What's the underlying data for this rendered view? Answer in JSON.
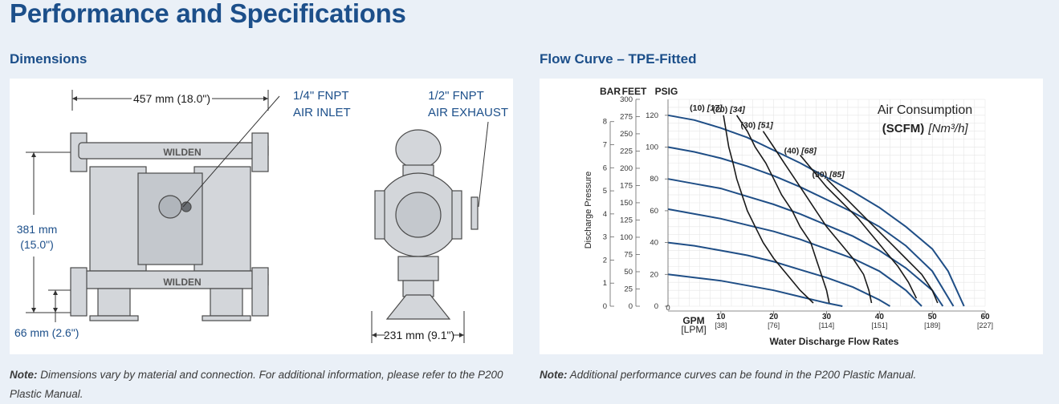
{
  "page": {
    "title": "Performance and Specifications"
  },
  "dimensions": {
    "heading": "Dimensions",
    "width_label": "457 mm (18.0\")",
    "air_inlet": [
      "1/4\" FNPT",
      "AIR INLET"
    ],
    "air_exhaust": [
      "1/2\" FNPT",
      "AIR EXHAUST"
    ],
    "height_label": [
      "381 mm",
      "(15.0\")"
    ],
    "base_label": "66 mm (2.6\")",
    "side_width_label": "231 mm (9.1\")",
    "brand": "WILDEN",
    "note_prefix": "Note:",
    "note_text": " Dimensions vary by material and connection. For additional information, please refer to the P200 Plastic Manual."
  },
  "flow": {
    "heading": "Flow Curve – TPE-Fitted",
    "note_prefix": "Note:",
    "note_text": " Additional performance curves can be found in the P200 Plastic Manual."
  },
  "colors": {
    "heading": "#1c4f8a",
    "curve": "#1f4e86",
    "air": "#1a1a1a"
  },
  "chart_data": {
    "type": "line",
    "xlabel": "Water Discharge Flow Rates",
    "ylabel": "Discharge Pressure",
    "x_unit_labels": [
      "GPM",
      "[LPM]"
    ],
    "xlim": [
      0,
      60
    ],
    "x_ticks": [
      {
        "v": 10,
        "lpm": "[38]"
      },
      {
        "v": 20,
        "lpm": "[76]"
      },
      {
        "v": 30,
        "lpm": "[114]"
      },
      {
        "v": 40,
        "lpm": "[151]"
      },
      {
        "v": 50,
        "lpm": "[189]"
      },
      {
        "v": 60,
        "lpm": "[227]"
      }
    ],
    "x_zero": "0",
    "y_axes": [
      {
        "name": "BAR",
        "ticks": [
          "0",
          "1",
          "2",
          "3",
          "4",
          "5",
          "6",
          "7",
          "8"
        ],
        "values": [
          0,
          1,
          2,
          3,
          4,
          5,
          6,
          7,
          8
        ]
      },
      {
        "name": "FEET",
        "ticks": [
          "0",
          "25",
          "50",
          "75",
          "100",
          "125",
          "150",
          "175",
          "200",
          "225",
          "250",
          "275",
          "300"
        ],
        "values": [
          0,
          25,
          50,
          75,
          100,
          125,
          150,
          175,
          200,
          225,
          250,
          275,
          300
        ]
      },
      {
        "name": "PSIG",
        "ticks": [
          "0",
          "20",
          "40",
          "60",
          "80",
          "100",
          "120"
        ],
        "values": [
          0,
          20,
          40,
          60,
          80,
          100,
          120
        ]
      }
    ],
    "ylim_psig": [
      0,
      130
    ],
    "grid": true,
    "legend_title": "Air Consumption",
    "legend_units": "(SCFM)",
    "legend_units_metric": "[Nm³/h]",
    "pressure_series": [
      {
        "name": "120",
        "points": [
          [
            0,
            120
          ],
          [
            5,
            117
          ],
          [
            10,
            112
          ],
          [
            15,
            106
          ],
          [
            20,
            98
          ],
          [
            25,
            90
          ],
          [
            30,
            81
          ],
          [
            35,
            72
          ],
          [
            40,
            62
          ],
          [
            45,
            50
          ],
          [
            50,
            36
          ],
          [
            53,
            22
          ],
          [
            56,
            0
          ]
        ]
      },
      {
        "name": "100",
        "points": [
          [
            0,
            100
          ],
          [
            5,
            97
          ],
          [
            10,
            93
          ],
          [
            15,
            88
          ],
          [
            20,
            82
          ],
          [
            25,
            75
          ],
          [
            30,
            67
          ],
          [
            35,
            59
          ],
          [
            40,
            50
          ],
          [
            45,
            38
          ],
          [
            50,
            22
          ],
          [
            54,
            0
          ]
        ]
      },
      {
        "name": "80",
        "points": [
          [
            0,
            80
          ],
          [
            5,
            77
          ],
          [
            10,
            74
          ],
          [
            15,
            69
          ],
          [
            20,
            64
          ],
          [
            25,
            58
          ],
          [
            30,
            51
          ],
          [
            35,
            44
          ],
          [
            40,
            35
          ],
          [
            45,
            24
          ],
          [
            50,
            10
          ],
          [
            52,
            0
          ]
        ]
      },
      {
        "name": "60",
        "points": [
          [
            0,
            61
          ],
          [
            5,
            58
          ],
          [
            10,
            55
          ],
          [
            15,
            51
          ],
          [
            20,
            47
          ],
          [
            25,
            42
          ],
          [
            30,
            36
          ],
          [
            35,
            30
          ],
          [
            40,
            22
          ],
          [
            45,
            10
          ],
          [
            48,
            0
          ]
        ]
      },
      {
        "name": "40",
        "points": [
          [
            0,
            40
          ],
          [
            5,
            38
          ],
          [
            10,
            35
          ],
          [
            15,
            32
          ],
          [
            20,
            28
          ],
          [
            25,
            23
          ],
          [
            30,
            18
          ],
          [
            35,
            12
          ],
          [
            40,
            4
          ],
          [
            42,
            0
          ]
        ]
      },
      {
        "name": "20",
        "points": [
          [
            0,
            20
          ],
          [
            5,
            18
          ],
          [
            10,
            16
          ],
          [
            15,
            13
          ],
          [
            20,
            10
          ],
          [
            25,
            6
          ],
          [
            30,
            2
          ],
          [
            33,
            0
          ]
        ]
      }
    ],
    "air_series": [
      {
        "label": "(10)",
        "metric": "[17]",
        "points": [
          [
            10.5,
            120
          ],
          [
            11,
            110
          ],
          [
            11.5,
            100
          ],
          [
            12.3,
            90
          ],
          [
            13,
            80
          ],
          [
            14,
            70
          ],
          [
            15,
            60
          ],
          [
            16.5,
            50
          ],
          [
            18,
            40
          ],
          [
            20,
            30
          ],
          [
            22.5,
            20
          ],
          [
            25,
            10
          ],
          [
            27.5,
            2
          ]
        ]
      },
      {
        "label": "(20)",
        "metric": "[34]",
        "points": [
          [
            13,
            120
          ],
          [
            15,
            110
          ],
          [
            16.5,
            100
          ],
          [
            18.5,
            90
          ],
          [
            20,
            80
          ],
          [
            21.5,
            70
          ],
          [
            23.5,
            60
          ],
          [
            25,
            50
          ],
          [
            27,
            40
          ],
          [
            28,
            30
          ],
          [
            29,
            20
          ],
          [
            30,
            10
          ],
          [
            30.5,
            2
          ]
        ]
      },
      {
        "label": "(30)",
        "metric": "[51]",
        "points": [
          [
            18,
            110
          ],
          [
            20,
            100
          ],
          [
            22,
            90
          ],
          [
            24,
            80
          ],
          [
            26,
            70
          ],
          [
            28,
            60
          ],
          [
            30,
            50
          ],
          [
            32.5,
            40
          ],
          [
            35,
            30
          ],
          [
            37,
            20
          ],
          [
            38,
            10
          ],
          [
            38.5,
            2
          ]
        ]
      },
      {
        "label": "(40)",
        "metric": "[68]",
        "points": [
          [
            25,
            95
          ],
          [
            27.5,
            85
          ],
          [
            30,
            75
          ],
          [
            33,
            65
          ],
          [
            36,
            55
          ],
          [
            38.5,
            45
          ],
          [
            41,
            35
          ],
          [
            43.5,
            25
          ],
          [
            45.5,
            15
          ],
          [
            47,
            5
          ]
        ]
      },
      {
        "label": "(50)",
        "metric": "[85]",
        "points": [
          [
            30,
            80
          ],
          [
            33,
            70
          ],
          [
            36,
            60
          ],
          [
            39,
            50
          ],
          [
            42,
            40
          ],
          [
            45,
            30
          ],
          [
            48,
            20
          ],
          [
            50,
            10
          ],
          [
            51,
            2
          ]
        ]
      }
    ]
  }
}
